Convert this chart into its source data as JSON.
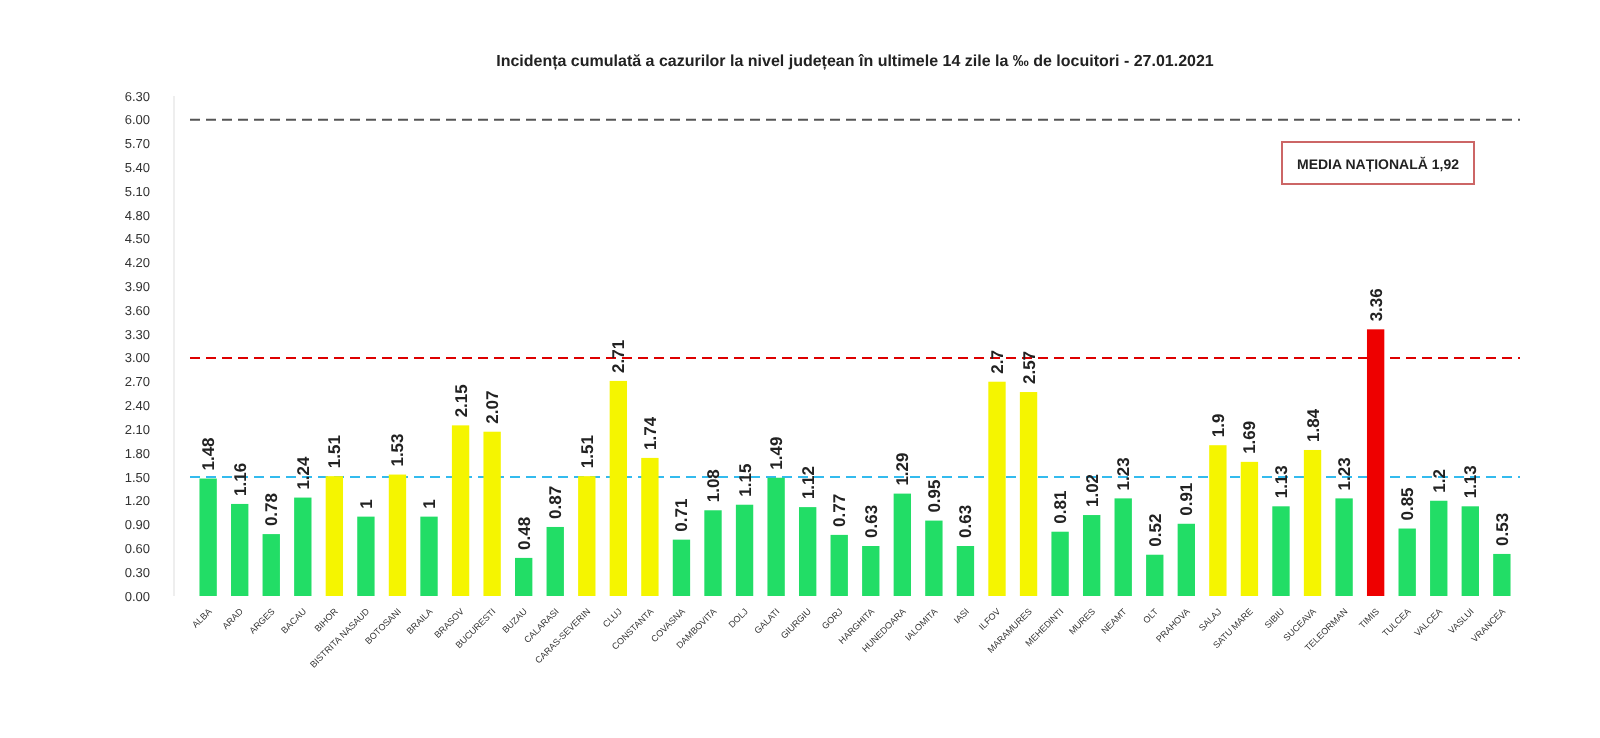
{
  "chart_data": {
    "type": "bar",
    "title": "Incidența cumulată a cazurilor la nivel județean în ultimele 14 zile la ‰ de locuitori - 27.01.2021",
    "categories": [
      "ALBA",
      "ARAD",
      "ARGES",
      "BACAU",
      "BIHOR",
      "BISTRITA NASAUD",
      "BOTOSANI",
      "BRAILA",
      "BRASOV",
      "BUCURESTI",
      "BUZAU",
      "CALARASI",
      "CARAS-SEVERIN",
      "CLUJ",
      "CONSTANTA",
      "COVASNA",
      "DAMBOVITA",
      "DOLJ",
      "GALATI",
      "GIURGIU",
      "GORJ",
      "HARGHITA",
      "HUNEDOARA",
      "IALOMITA",
      "IASI",
      "ILFOV",
      "MARAMURES",
      "MEHEDINTI",
      "MURES",
      "NEAMT",
      "OLT",
      "PRAHOVA",
      "SALAJ",
      "SATU MARE",
      "SIBIU",
      "SUCEAVA",
      "TELEORMAN",
      "TIMIS",
      "TULCEA",
      "VALCEA",
      "VASLUI",
      "VRANCEA"
    ],
    "values": [
      1.48,
      1.16,
      0.78,
      1.24,
      1.51,
      1,
      1.53,
      1,
      2.15,
      2.07,
      0.48,
      0.87,
      1.51,
      2.71,
      1.74,
      0.71,
      1.08,
      1.15,
      1.49,
      1.12,
      0.77,
      0.63,
      1.29,
      0.95,
      0.63,
      2.7,
      2.57,
      0.81,
      1.02,
      1.23,
      0.52,
      0.91,
      1.9,
      1.69,
      1.13,
      1.84,
      1.23,
      3.36,
      0.85,
      1.2,
      1.13,
      0.53
    ],
    "colors": [
      "#22dd66",
      "#22dd66",
      "#22dd66",
      "#22dd66",
      "#f5f500",
      "#22dd66",
      "#f5f500",
      "#22dd66",
      "#f5f500",
      "#f5f500",
      "#22dd66",
      "#22dd66",
      "#f5f500",
      "#f5f500",
      "#f5f500",
      "#22dd66",
      "#22dd66",
      "#22dd66",
      "#22dd66",
      "#22dd66",
      "#22dd66",
      "#22dd66",
      "#22dd66",
      "#22dd66",
      "#22dd66",
      "#f5f500",
      "#f5f500",
      "#22dd66",
      "#22dd66",
      "#22dd66",
      "#22dd66",
      "#22dd66",
      "#f5f500",
      "#f5f500",
      "#22dd66",
      "#f5f500",
      "#22dd66",
      "#ee0000",
      "#22dd66",
      "#22dd66",
      "#22dd66",
      "#22dd66"
    ],
    "data_labels": true,
    "ylim": [
      0,
      6.3
    ],
    "yticks": [
      {
        "value": 0,
        "label": "0.00"
      },
      {
        "value": 0.3,
        "label": "0.30"
      },
      {
        "value": 0.6,
        "label": "0.60"
      },
      {
        "value": 0.9,
        "label": "0.90"
      },
      {
        "value": 1.2,
        "label": "1.20"
      },
      {
        "value": 1.5,
        "label": "1.50"
      },
      {
        "value": 1.8,
        "label": "1.80"
      },
      {
        "value": 2.1,
        "label": "2.10"
      },
      {
        "value": 2.4,
        "label": "2.40"
      },
      {
        "value": 2.7,
        "label": "2.70"
      },
      {
        "value": 3,
        "label": "3.00"
      },
      {
        "value": 3.3,
        "label": "3.30"
      },
      {
        "value": 3.6,
        "label": "3.60"
      },
      {
        "value": 3.9,
        "label": "3.90"
      },
      {
        "value": 4.2,
        "label": "4.20"
      },
      {
        "value": 4.5,
        "label": "4.50"
      },
      {
        "value": 4.8,
        "label": "4.80"
      },
      {
        "value": 5.1,
        "label": "5.10"
      },
      {
        "value": 5.4,
        "label": "5.40"
      },
      {
        "value": 5.7,
        "label": "5.70"
      },
      {
        "value": 6,
        "label": "6.00"
      },
      {
        "value": 6.3,
        "label": "6.30"
      }
    ],
    "ref_lines": [
      {
        "axis": "y",
        "value": 6,
        "color": "#555555",
        "line_style": "dashed"
      },
      {
        "axis": "y",
        "value": 3,
        "color": "#dd0000",
        "line_style": "dashed"
      },
      {
        "axis": "y",
        "value": 1.5,
        "color": "#33bbee",
        "line_style": "dashed"
      }
    ],
    "annotations": [
      "MEDIA NAȚIONALĂ 1,92"
    ],
    "grid": false
  }
}
